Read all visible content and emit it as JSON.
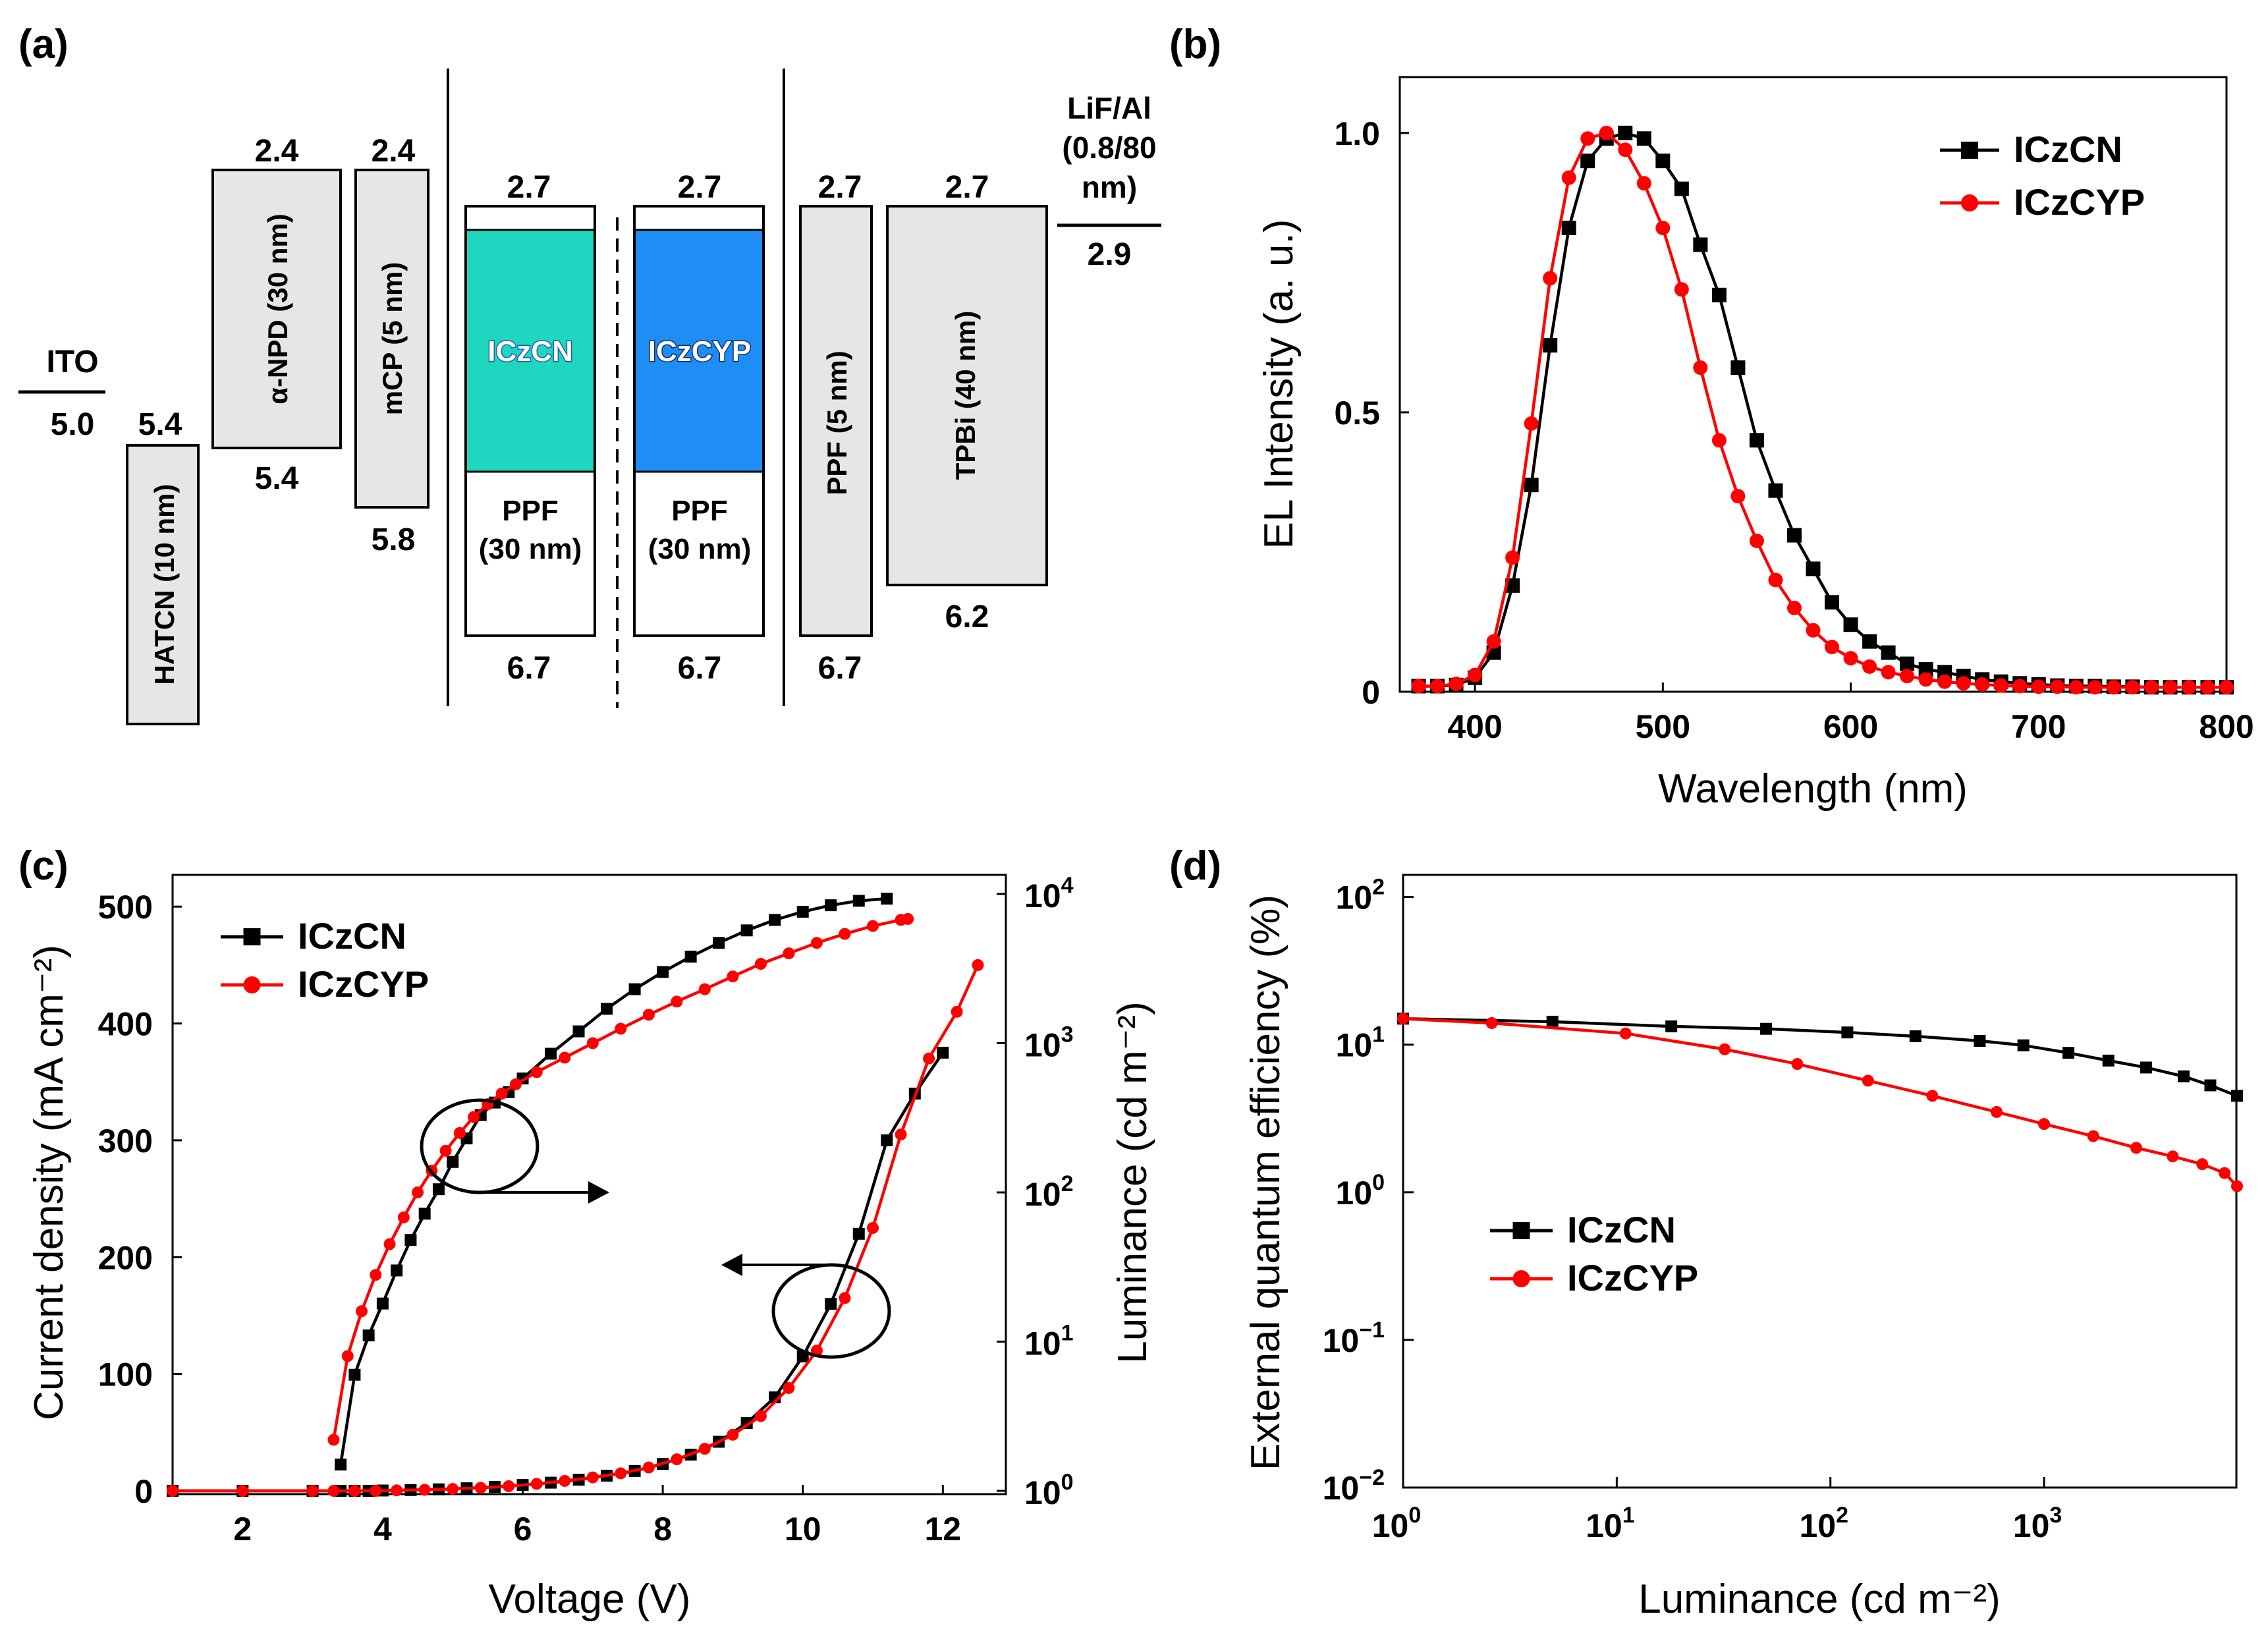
{
  "colors": {
    "black": "#000000",
    "red": "#ff0000",
    "cyan": "#1fd6c0",
    "blue": "#1e8ef5",
    "gray": "#e6e6e6"
  },
  "panel_a": {
    "label": "(a)",
    "layers": [
      {
        "name": "ITO",
        "top": "",
        "bottom": "5.0",
        "shape": "line"
      },
      {
        "name": "HATCN (10 nm)",
        "top": "5.4",
        "bottom": "",
        "shape": "box",
        "fill": "gray"
      },
      {
        "name": "α-NPD (30 nm)",
        "top": "2.4",
        "bottom": "5.4",
        "shape": "box",
        "fill": "gray"
      },
      {
        "name": "mCP (5 nm)",
        "top": "2.4",
        "bottom": "5.8",
        "shape": "box",
        "fill": "gray"
      },
      {
        "name": "ICzCN",
        "top": "2.7",
        "bottom": "6.7",
        "shape": "emitter",
        "fill": "cyan",
        "host": "PPF",
        "host_thickness": "(30 nm)"
      },
      {
        "name": "ICzCYP",
        "top": "2.7",
        "bottom": "6.7",
        "shape": "emitter",
        "fill": "blue",
        "host": "PPF",
        "host_thickness": "(30 nm)"
      },
      {
        "name": "PPF (5 nm)",
        "top": "2.7",
        "bottom": "6.7",
        "shape": "box",
        "fill": "gray"
      },
      {
        "name": "TPBi (40 nm)",
        "top": "2.7",
        "bottom": "6.2",
        "shape": "box",
        "fill": "gray"
      },
      {
        "name": "LiF/Al",
        "name_line2": "(0.8/80",
        "name_line3": "nm)",
        "top": "",
        "bottom": "2.9",
        "shape": "line"
      }
    ]
  },
  "chart_data": [
    {
      "panel": "(b)",
      "type": "line",
      "title": "",
      "xlabel": "Wavelength (nm)",
      "ylabel": "EL Intensity (a. u.)",
      "xlim": [
        360,
        800
      ],
      "ylim": [
        0,
        1.1
      ],
      "xticks": [
        400,
        500,
        600,
        700,
        800
      ],
      "xtick_labels": [
        "400",
        "500",
        "600",
        "700",
        "800"
      ],
      "yticks": [
        0,
        0.5,
        1.0
      ],
      "ytick_labels": [
        "0",
        "0.5",
        "1.0"
      ],
      "legend_position": "top-right",
      "series": [
        {
          "name": "ICzCN",
          "color": "#000000",
          "marker": "square",
          "x": [
            370,
            380,
            390,
            400,
            410,
            420,
            430,
            440,
            450,
            460,
            470,
            480,
            490,
            500,
            510,
            520,
            530,
            540,
            550,
            560,
            570,
            580,
            590,
            600,
            610,
            620,
            630,
            640,
            650,
            660,
            670,
            680,
            690,
            700,
            710,
            720,
            730,
            740,
            750,
            760,
            770,
            780,
            790,
            800
          ],
          "y": [
            0.01,
            0.01,
            0.012,
            0.025,
            0.07,
            0.19,
            0.37,
            0.62,
            0.83,
            0.95,
            0.99,
            1.0,
            0.99,
            0.95,
            0.9,
            0.8,
            0.71,
            0.58,
            0.45,
            0.36,
            0.28,
            0.22,
            0.16,
            0.12,
            0.09,
            0.07,
            0.05,
            0.04,
            0.035,
            0.028,
            0.022,
            0.018,
            0.015,
            0.013,
            0.011,
            0.01,
            0.01,
            0.009,
            0.009,
            0.008,
            0.008,
            0.008,
            0.008,
            0.008
          ]
        },
        {
          "name": "ICzCYP",
          "color": "#ff0000",
          "marker": "circle",
          "x": [
            370,
            380,
            390,
            400,
            410,
            420,
            430,
            440,
            450,
            460,
            470,
            480,
            490,
            500,
            510,
            520,
            530,
            540,
            550,
            560,
            570,
            580,
            590,
            600,
            610,
            620,
            630,
            640,
            650,
            660,
            670,
            680,
            690,
            700,
            710,
            720,
            730,
            740,
            750,
            760,
            770,
            780,
            790,
            800
          ],
          "y": [
            0.01,
            0.01,
            0.014,
            0.03,
            0.09,
            0.24,
            0.48,
            0.74,
            0.92,
            0.99,
            1.0,
            0.97,
            0.91,
            0.83,
            0.72,
            0.58,
            0.45,
            0.35,
            0.27,
            0.2,
            0.15,
            0.11,
            0.08,
            0.06,
            0.045,
            0.035,
            0.028,
            0.022,
            0.018,
            0.015,
            0.013,
            0.011,
            0.01,
            0.009,
            0.009,
            0.008,
            0.008,
            0.008,
            0.008,
            0.008,
            0.008,
            0.008,
            0.008,
            0.008
          ]
        }
      ]
    },
    {
      "panel": "(c)",
      "type": "line",
      "title": "",
      "xlabel": "Voltage (V)",
      "ylabel": "Current density (mA cm⁻²)",
      "y2label": "Luminance (cd m⁻²)",
      "xlim": [
        1,
        12.9
      ],
      "ylim": [
        0,
        530
      ],
      "y2lim_log10": [
        0,
        4.15
      ],
      "xticks": [
        2,
        4,
        6,
        8,
        10,
        12
      ],
      "xtick_labels": [
        "2",
        "4",
        "6",
        "8",
        "10",
        "12"
      ],
      "yticks": [
        0,
        100,
        200,
        300,
        400,
        500
      ],
      "ytick_labels": [
        "0",
        "100",
        "200",
        "300",
        "400",
        "500"
      ],
      "y2ticks_base": "10",
      "y2ticks_exp": [
        "0",
        "1",
        "2",
        "3",
        "4"
      ],
      "legend_position": "top-left",
      "series": [
        {
          "name": "ICzCN",
          "axis": "left",
          "color": "#000000",
          "marker": "square",
          "x": [
            1,
            2,
            3,
            3.4,
            3.6,
            3.8,
            4,
            4.4,
            4.8,
            5.2,
            5.6,
            6,
            6.4,
            6.8,
            7.2,
            7.6,
            8,
            8.4,
            8.8,
            9.2,
            9.6,
            10,
            10.4,
            10.8,
            11.2,
            11.6,
            12
          ],
          "y": [
            0,
            0,
            0,
            0,
            0,
            0,
            0.3,
            0.7,
            1.3,
            2.2,
            3.4,
            5,
            7,
            9.5,
            13,
            17,
            23,
            31,
            42,
            58,
            80,
            115,
            160,
            220,
            300,
            340,
            375
          ]
        },
        {
          "name": "ICzCYP",
          "axis": "left",
          "color": "#ff0000",
          "marker": "circle",
          "x": [
            1,
            2,
            3,
            3.3,
            3.6,
            3.9,
            4.2,
            4.6,
            5,
            5.4,
            5.8,
            6.2,
            6.6,
            7,
            7.4,
            7.8,
            8.2,
            8.6,
            9,
            9.4,
            9.8,
            10.2,
            10.6,
            11,
            11.4,
            11.8,
            12.2,
            12.5
          ],
          "y": [
            0,
            0,
            0,
            0,
            0,
            0,
            0.4,
            0.9,
            1.6,
            2.6,
            4,
            6,
            8.5,
            11.5,
            15,
            20,
            27,
            36,
            48,
            64,
            88,
            120,
            165,
            225,
            305,
            370,
            410,
            450
          ]
        },
        {
          "name": "ICzCN",
          "axis": "right",
          "color": "#000000",
          "marker": "square",
          "x": [
            3.4,
            3.6,
            3.8,
            4,
            4.2,
            4.4,
            4.6,
            4.8,
            5,
            5.2,
            5.4,
            5.6,
            5.8,
            6,
            6.4,
            6.8,
            7.2,
            7.6,
            8,
            8.4,
            8.8,
            9.2,
            9.6,
            10,
            10.4,
            10.8,
            11.2
          ],
          "y": [
            1.5,
            6,
            11,
            18,
            30,
            48,
            72,
            105,
            160,
            230,
            330,
            400,
            470,
            580,
            850,
            1200,
            1700,
            2300,
            3000,
            3800,
            4700,
            5700,
            6700,
            7600,
            8400,
            9000,
            9300
          ]
        },
        {
          "name": "ICzCYP",
          "axis": "right",
          "color": "#ff0000",
          "marker": "circle",
          "x": [
            3.3,
            3.5,
            3.7,
            3.9,
            4.1,
            4.3,
            4.5,
            4.7,
            4.9,
            5.1,
            5.3,
            5.5,
            5.7,
            5.9,
            6.2,
            6.6,
            7,
            7.4,
            7.8,
            8.2,
            8.6,
            9,
            9.4,
            9.8,
            10.2,
            10.6,
            11,
            11.4,
            11.5
          ],
          "y": [
            2.2,
            8,
            16,
            28,
            45,
            68,
            100,
            140,
            190,
            250,
            320,
            390,
            460,
            530,
            640,
            800,
            1000,
            1250,
            1550,
            1900,
            2300,
            2800,
            3400,
            4000,
            4700,
            5400,
            6100,
            6700,
            6800
          ]
        }
      ],
      "annotations": [
        "circle-arrow-right",
        "circle-arrow-left"
      ]
    },
    {
      "panel": "(d)",
      "type": "line",
      "title": "",
      "xlabel": "Luminance (cd m⁻²)",
      "ylabel": "External quantum efficiency (%)",
      "xscale": "log",
      "yscale": "log",
      "xlim_log10": [
        0,
        3.9
      ],
      "ylim_log10": [
        -2,
        2.15
      ],
      "xticks_base": "10",
      "xticks_exp": [
        "0",
        "1",
        "2",
        "3"
      ],
      "yticks_base": "10",
      "yticks_exp": [
        "-2",
        "-1",
        "0",
        "1",
        "2"
      ],
      "legend_position": "lower-left",
      "series": [
        {
          "name": "ICzCN",
          "color": "#000000",
          "marker": "square",
          "x": [
            1,
            5,
            18,
            50,
            120,
            250,
            500,
            800,
            1300,
            2000,
            3000,
            4500,
            6000,
            8000
          ],
          "y": [
            15,
            14.3,
            13.3,
            12.8,
            12.1,
            11.4,
            10.6,
            9.9,
            8.8,
            7.8,
            7.0,
            6.1,
            5.3,
            4.5
          ]
        },
        {
          "name": "ICzCYP",
          "color": "#ff0000",
          "marker": "circle",
          "x": [
            1,
            2.6,
            11,
            32,
            70,
            150,
            300,
            600,
            1000,
            1700,
            2700,
            4000,
            5500,
            7000,
            8000
          ],
          "y": [
            15,
            14,
            11.9,
            9.3,
            7.4,
            5.7,
            4.5,
            3.5,
            2.9,
            2.4,
            2.0,
            1.75,
            1.55,
            1.35,
            1.1
          ]
        }
      ]
    }
  ]
}
